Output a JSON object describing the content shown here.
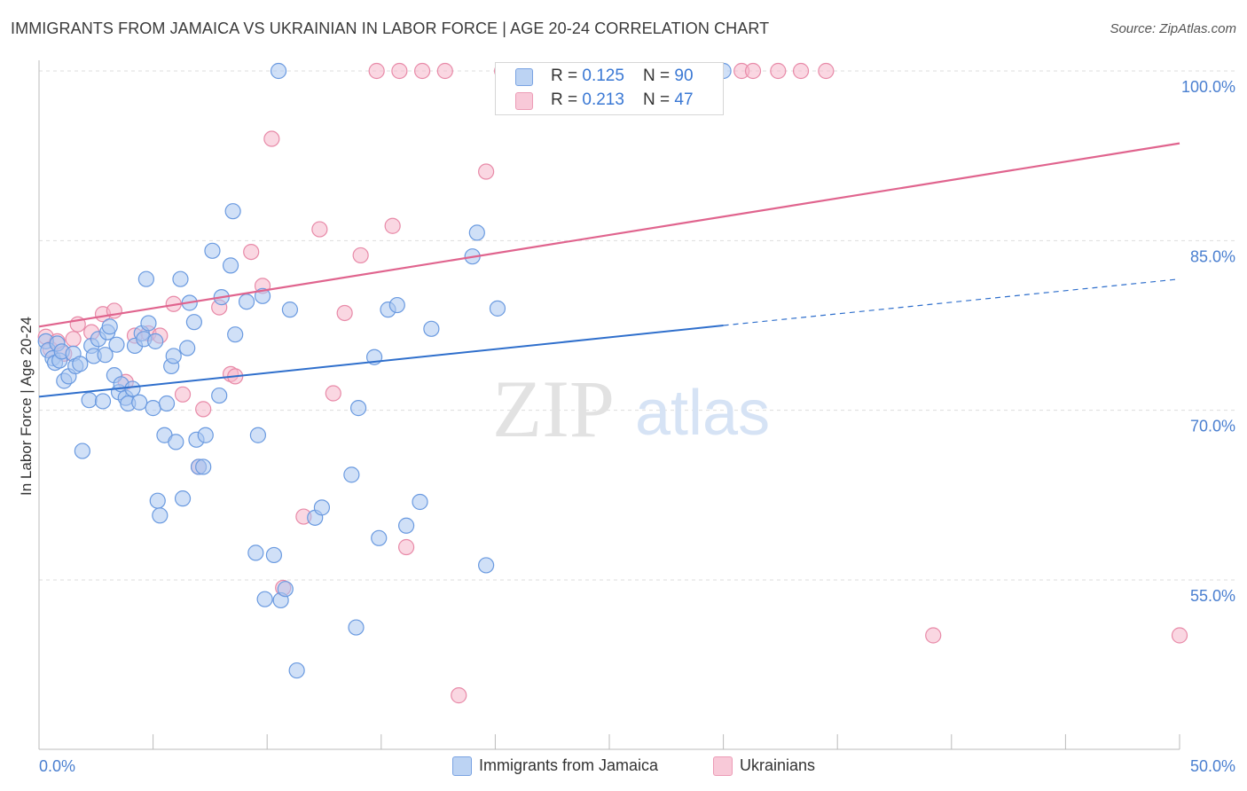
{
  "title": "IMMIGRANTS FROM JAMAICA VS UKRAINIAN IN LABOR FORCE | AGE 20-24 CORRELATION CHART",
  "source": "Source: ZipAtlas.com",
  "watermark": {
    "zip": "ZIP",
    "atlas": "atlas"
  },
  "colors": {
    "blue_fill": "#a9c6f0",
    "blue_stroke": "#6a9ae0",
    "blue_line": "#2f6fcc",
    "pink_fill": "#f6b7cb",
    "pink_stroke": "#e88aa8",
    "pink_line": "#e0648e",
    "tick_text": "#4a7fd0",
    "grid": "#dddddd"
  },
  "legend": {
    "rows": [
      {
        "r_label": "R = ",
        "r_value": "0.125",
        "n_label": "N = ",
        "n_value": "90"
      },
      {
        "r_label": "R = ",
        "r_value": "0.213",
        "n_label": "N = ",
        "n_value": "47"
      }
    ]
  },
  "bottom_legend": [
    "Immigrants from Jamaica",
    "Ukrainians"
  ],
  "chart_data": {
    "type": "scatter",
    "xlabel": "",
    "ylabel": "In Labor Force | Age 20-24",
    "xlim": [
      0,
      50
    ],
    "ylim": [
      40,
      102
    ],
    "x_tick_labels": [
      "0.0%",
      "50.0%"
    ],
    "y_ticks": [
      55,
      70,
      85,
      100
    ],
    "y_tick_labels": [
      "55.0%",
      "70.0%",
      "85.0%",
      "100.0%"
    ],
    "grid": "horizontal dashed",
    "series": [
      {
        "name": "Immigrants from Jamaica",
        "color": "blue",
        "r": 0.125,
        "n": 90,
        "trend": {
          "x": [
            0,
            30
          ],
          "y": [
            71.2,
            77.5
          ],
          "dashed_to": [
            50,
            81.6
          ]
        },
        "points": [
          [
            0.3,
            76.1
          ],
          [
            0.4,
            75.3
          ],
          [
            0.6,
            74.6
          ],
          [
            0.7,
            74.2
          ],
          [
            0.8,
            75.9
          ],
          [
            0.9,
            74.4
          ],
          [
            1.0,
            75.2
          ],
          [
            1.1,
            72.6
          ],
          [
            1.3,
            73.0
          ],
          [
            1.5,
            75.0
          ],
          [
            1.6,
            73.9
          ],
          [
            1.8,
            74.1
          ],
          [
            1.9,
            66.4
          ],
          [
            2.2,
            70.9
          ],
          [
            2.3,
            75.7
          ],
          [
            2.4,
            74.8
          ],
          [
            2.6,
            76.3
          ],
          [
            2.8,
            70.8
          ],
          [
            2.9,
            74.9
          ],
          [
            3.0,
            76.9
          ],
          [
            3.1,
            77.4
          ],
          [
            3.3,
            73.1
          ],
          [
            3.4,
            75.8
          ],
          [
            3.5,
            71.6
          ],
          [
            3.6,
            72.3
          ],
          [
            3.8,
            71.1
          ],
          [
            3.9,
            70.6
          ],
          [
            4.1,
            71.9
          ],
          [
            4.2,
            75.7
          ],
          [
            4.4,
            70.7
          ],
          [
            4.5,
            76.8
          ],
          [
            4.6,
            76.3
          ],
          [
            4.7,
            81.6
          ],
          [
            4.8,
            77.7
          ],
          [
            5.0,
            70.2
          ],
          [
            5.1,
            76.1
          ],
          [
            5.2,
            62.0
          ],
          [
            5.3,
            60.7
          ],
          [
            5.5,
            67.8
          ],
          [
            5.6,
            70.6
          ],
          [
            5.8,
            73.9
          ],
          [
            5.9,
            74.8
          ],
          [
            6.0,
            67.2
          ],
          [
            6.2,
            81.6
          ],
          [
            6.3,
            62.2
          ],
          [
            6.5,
            75.5
          ],
          [
            6.6,
            79.5
          ],
          [
            6.8,
            77.8
          ],
          [
            6.9,
            67.4
          ],
          [
            7.0,
            65.0
          ],
          [
            7.2,
            65.0
          ],
          [
            7.3,
            67.8
          ],
          [
            7.6,
            84.1
          ],
          [
            7.9,
            71.3
          ],
          [
            8.0,
            80.0
          ],
          [
            8.4,
            82.8
          ],
          [
            8.5,
            87.6
          ],
          [
            8.6,
            76.7
          ],
          [
            9.1,
            79.6
          ],
          [
            9.5,
            57.4
          ],
          [
            9.6,
            67.8
          ],
          [
            9.8,
            80.1
          ],
          [
            9.9,
            53.3
          ],
          [
            10.3,
            57.2
          ],
          [
            10.5,
            100.0
          ],
          [
            10.6,
            53.2
          ],
          [
            10.8,
            54.2
          ],
          [
            11.0,
            78.9
          ],
          [
            11.3,
            47.0
          ],
          [
            12.1,
            60.5
          ],
          [
            12.4,
            61.4
          ],
          [
            13.7,
            64.3
          ],
          [
            13.9,
            50.8
          ],
          [
            14.0,
            70.2
          ],
          [
            14.7,
            74.7
          ],
          [
            14.9,
            58.7
          ],
          [
            15.3,
            78.9
          ],
          [
            15.7,
            79.3
          ],
          [
            16.1,
            59.8
          ],
          [
            16.7,
            61.9
          ],
          [
            17.2,
            77.2
          ],
          [
            19.0,
            83.6
          ],
          [
            19.2,
            85.7
          ],
          [
            19.6,
            56.3
          ],
          [
            20.1,
            79.0
          ],
          [
            20.9,
            100.0
          ],
          [
            23.2,
            100.0
          ],
          [
            23.6,
            100.0
          ],
          [
            27.2,
            100.0
          ],
          [
            30.0,
            100.0
          ]
        ]
      },
      {
        "name": "Ukrainians",
        "color": "pink",
        "r": 0.213,
        "n": 47,
        "trend": {
          "x": [
            0,
            50
          ],
          "y": [
            77.4,
            93.6
          ]
        },
        "points": [
          [
            0.3,
            76.5
          ],
          [
            0.5,
            75.4
          ],
          [
            0.8,
            76.1
          ],
          [
            1.1,
            75.0
          ],
          [
            1.5,
            76.3
          ],
          [
            1.7,
            77.6
          ],
          [
            2.3,
            76.9
          ],
          [
            2.8,
            78.5
          ],
          [
            3.3,
            78.8
          ],
          [
            3.8,
            72.5
          ],
          [
            4.2,
            76.6
          ],
          [
            4.8,
            76.8
          ],
          [
            5.3,
            76.6
          ],
          [
            5.9,
            79.4
          ],
          [
            6.3,
            71.4
          ],
          [
            7.0,
            65.0
          ],
          [
            7.2,
            70.1
          ],
          [
            7.9,
            79.1
          ],
          [
            8.4,
            73.2
          ],
          [
            8.6,
            73.0
          ],
          [
            9.3,
            84.0
          ],
          [
            9.8,
            81.0
          ],
          [
            10.2,
            94.0
          ],
          [
            10.7,
            54.3
          ],
          [
            11.6,
            60.6
          ],
          [
            12.3,
            86.0
          ],
          [
            12.9,
            71.5
          ],
          [
            13.4,
            78.6
          ],
          [
            14.1,
            83.7
          ],
          [
            14.8,
            100.0
          ],
          [
            15.5,
            86.3
          ],
          [
            15.8,
            100.0
          ],
          [
            16.1,
            57.9
          ],
          [
            16.8,
            100.0
          ],
          [
            17.8,
            100.0
          ],
          [
            18.4,
            44.8
          ],
          [
            19.6,
            91.1
          ],
          [
            20.3,
            100.0
          ],
          [
            20.7,
            100.0
          ],
          [
            23.7,
            100.0
          ],
          [
            30.8,
            100.0
          ],
          [
            31.3,
            100.0
          ],
          [
            32.4,
            100.0
          ],
          [
            33.4,
            100.0
          ],
          [
            34.5,
            100.0
          ],
          [
            39.2,
            50.1
          ],
          [
            50.0,
            50.1
          ]
        ]
      }
    ]
  }
}
